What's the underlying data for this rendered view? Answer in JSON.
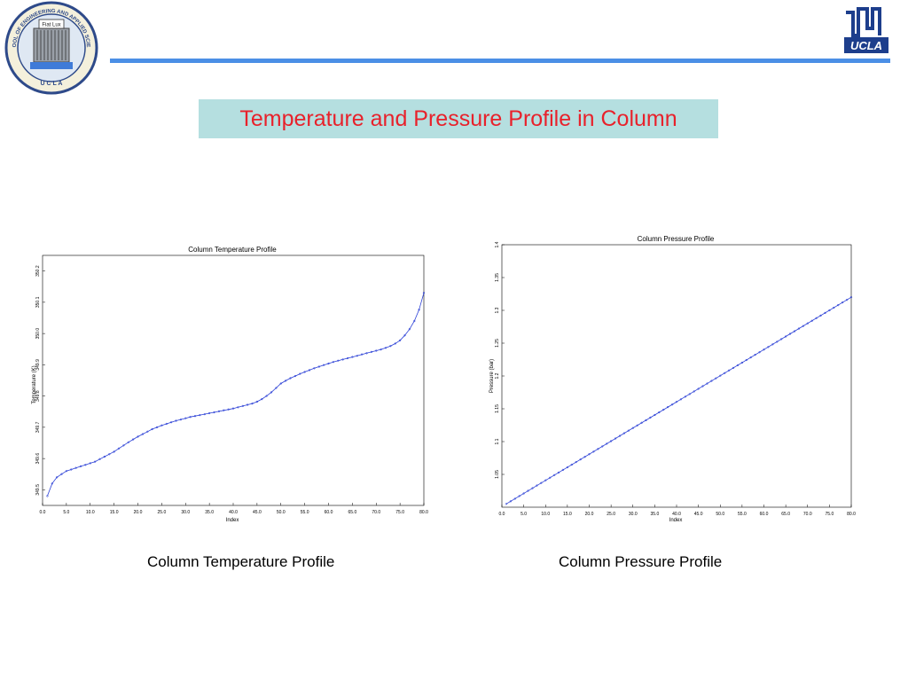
{
  "slide": {
    "title": "Temperature and Pressure Profile in Column",
    "accent_color": "#4b8fe6",
    "title_color": "#e8212b",
    "title_background": "#b5dfe0"
  },
  "logos": {
    "left": {
      "icon": "university-seal-icon",
      "seal_text": "SCHOOL OF ENGINEERING AND APPLIED SCIENCE",
      "seal_bottom": "U C L A",
      "seal_scroll": "Fiat Lux"
    },
    "right": {
      "icon": "ucla-logo-icon",
      "text": "UCLA"
    }
  },
  "captions": {
    "temperature": "Column Temperature Profile",
    "pressure": "Column Pressure Profile"
  },
  "chart_data": [
    {
      "type": "line",
      "title": "Column Temperature Profile",
      "xlabel": "Index",
      "ylabel": "Temperature (K)",
      "xlim": [
        0,
        80
      ],
      "ylim": [
        349.45,
        350.25
      ],
      "xticks": [
        "0.0",
        "5.0",
        "10.0",
        "15.0",
        "20.0",
        "25.0",
        "30.0",
        "35.0",
        "40.0",
        "45.0",
        "50.0",
        "55.0",
        "60.0",
        "65.0",
        "70.0",
        "75.0",
        "80.0"
      ],
      "yticks": [
        "349.5",
        "349.6",
        "349.7",
        "349.8",
        "349.9",
        "350.0",
        "350.1",
        "350.2"
      ],
      "series": [
        {
          "color": "#2a3fd6",
          "x": [
            1,
            2,
            3,
            4,
            5,
            6,
            7,
            8,
            9,
            10,
            11,
            12,
            13,
            14,
            15,
            16,
            17,
            18,
            19,
            20,
            21,
            22,
            23,
            24,
            25,
            26,
            27,
            28,
            29,
            30,
            31,
            32,
            33,
            34,
            35,
            36,
            37,
            38,
            39,
            40,
            41,
            42,
            43,
            44,
            45,
            46,
            47,
            48,
            49,
            50,
            51,
            52,
            53,
            54,
            55,
            56,
            57,
            58,
            59,
            60,
            61,
            62,
            63,
            64,
            65,
            66,
            67,
            68,
            69,
            70,
            71,
            72,
            73,
            74,
            75,
            76,
            77,
            78,
            79,
            80
          ],
          "values": [
            349.48,
            349.52,
            349.54,
            349.55,
            349.56,
            349.565,
            349.57,
            349.575,
            349.58,
            349.585,
            349.59,
            349.598,
            349.606,
            349.614,
            349.622,
            349.632,
            349.642,
            349.652,
            349.661,
            349.67,
            349.678,
            349.686,
            349.694,
            349.7,
            349.706,
            349.711,
            349.716,
            349.721,
            349.725,
            349.729,
            349.733,
            349.736,
            349.739,
            349.742,
            349.745,
            349.748,
            349.751,
            349.754,
            349.757,
            349.76,
            349.764,
            349.768,
            349.772,
            349.776,
            349.782,
            349.79,
            349.8,
            349.812,
            349.826,
            349.84,
            349.849,
            349.857,
            349.864,
            349.871,
            349.877,
            349.883,
            349.889,
            349.894,
            349.899,
            349.904,
            349.909,
            349.913,
            349.917,
            349.921,
            349.925,
            349.929,
            349.933,
            349.937,
            349.941,
            349.945,
            349.949,
            349.954,
            349.96,
            349.968,
            349.978,
            349.994,
            350.014,
            350.04,
            350.076,
            350.13
          ]
        }
      ],
      "grid": false,
      "legend": "none"
    },
    {
      "type": "line",
      "title": "Column Pressure Profile",
      "xlabel": "Index",
      "ylabel": "Pressure (bar)",
      "xlim": [
        0,
        80
      ],
      "ylim": [
        1.0,
        1.4
      ],
      "xticks": [
        "0.0",
        "5.0",
        "10.0",
        "15.0",
        "20.0",
        "25.0",
        "30.0",
        "35.0",
        "40.0",
        "45.0",
        "50.0",
        "55.0",
        "60.0",
        "65.0",
        "70.0",
        "75.0",
        "80.0"
      ],
      "yticks": [
        "1.05",
        "1.1",
        "1.15",
        "1.2",
        "1.25",
        "1.3",
        "1.35",
        "1.4"
      ],
      "series": [
        {
          "color": "#2a3fd6",
          "x_start": 1,
          "x_end": 80,
          "y_start": 1.005,
          "y_end": 1.32
        }
      ],
      "grid": false,
      "legend": "none"
    }
  ]
}
